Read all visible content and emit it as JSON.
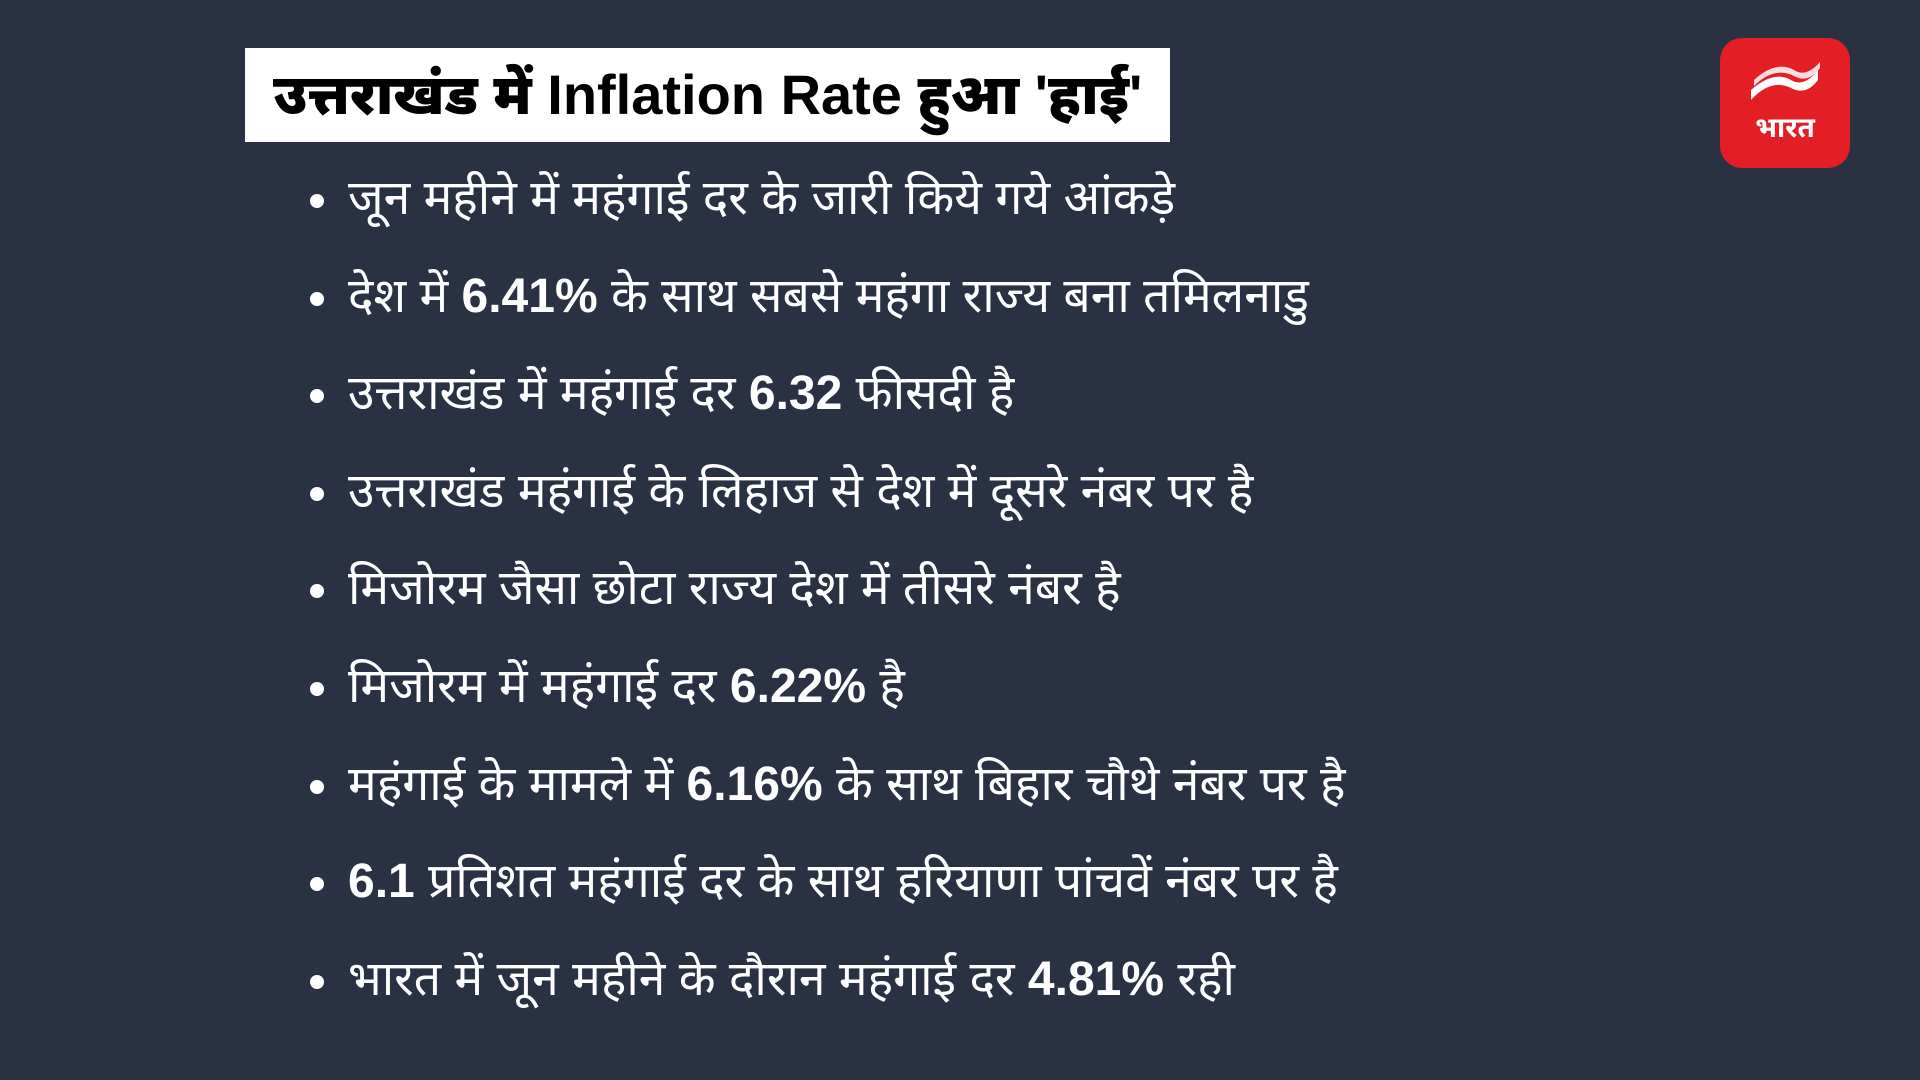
{
  "background_color": "#2a3142",
  "title": {
    "text": "उत्तराखंड में Inflation Rate हुआ 'हाई'",
    "bg_color": "#ffffff",
    "text_color": "#000000",
    "font_size": 56,
    "font_weight": 900
  },
  "logo": {
    "bg_color": "#e31e24",
    "swoosh_color": "#ffffff",
    "text": "भारत",
    "text_color": "#ffffff"
  },
  "bullets": {
    "text_color": "#ffffff",
    "font_size": 48,
    "dot_color": "#ffffff",
    "items": [
      {
        "html": "जून महीने में महंगाई दर के जारी किये गये आंकड़े"
      },
      {
        "html": "देश में <b>6.41%</b> के साथ सबसे महंगा राज्य बना तमिलनाडु"
      },
      {
        "html": "उत्तराखंड में महंगाई दर <b>6.32</b> फीसदी है"
      },
      {
        "html": "उत्तराखंड महंगाई के लिहाज से देश में दूसरे नंबर पर है"
      },
      {
        "html": "मिजोरम जैसा छोटा राज्य देश में तीसरे नंबर है"
      },
      {
        "html": "मिजोरम में महंगाई दर <b>6.22%</b> है"
      },
      {
        "html": "महंगाई के मामले में <b>6.16%</b> के साथ बिहार चौथे नंबर पर है"
      },
      {
        "html": "<b>6.1</b> प्रतिशत महंगाई दर के साथ हरियाणा पांचवें नंबर पर है"
      },
      {
        "html": "भारत में जून महीने के दौरान महंगाई दर <b>4.81%</b> रही"
      }
    ]
  }
}
